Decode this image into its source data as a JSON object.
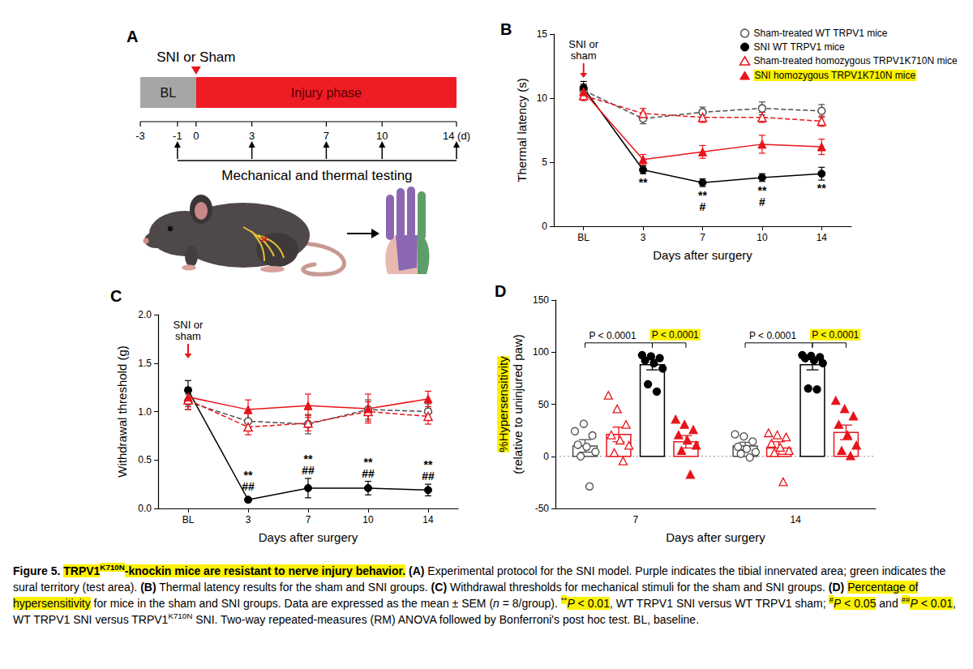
{
  "panel_a": {
    "panel": "A",
    "event_label": "SNI or Sham",
    "event_day": 0,
    "phases": [
      {
        "label": "BL",
        "from": -3,
        "to": 0,
        "color": "#a6a6a6"
      },
      {
        "label": "Injury phase",
        "from": 0,
        "to": 14,
        "color": "#ee1c25"
      }
    ],
    "ticks": [
      -3,
      -1,
      0,
      3,
      7,
      10,
      {
        "value": 14,
        "label": "14 (d)"
      }
    ],
    "testing_days": [
      -1,
      3,
      7,
      10,
      14
    ],
    "testing_label": "Mechanical and thermal testing"
  },
  "chart_data": [
    {
      "panel": "B",
      "type": "line",
      "x_label": "Days after surgery",
      "y_label": "Thermal latency (s)",
      "categories": [
        "BL",
        "3",
        "7",
        "10",
        "14"
      ],
      "ylim": [
        0,
        15
      ],
      "yticks": [
        0,
        5,
        10,
        15
      ],
      "grid": false,
      "legend": "upper right",
      "event": {
        "text": "SNI or sham",
        "x": "BL"
      },
      "series": [
        {
          "name": "Sham-treated WT TRPV1 mice",
          "color": "#4d4d4d",
          "marker": "open_circle",
          "line_style": "dashed",
          "values": [
            10.6,
            8.4,
            8.9,
            9.2,
            9.0
          ],
          "errors": [
            0.5,
            0.4,
            0.4,
            0.5,
            0.5
          ]
        },
        {
          "name": "SNI WT TRPV1 mice",
          "color": "#000000",
          "marker": "circle",
          "line_style": "solid",
          "values": [
            10.8,
            4.4,
            3.4,
            3.8,
            4.1
          ],
          "errors": [
            0.5,
            0.3,
            0.3,
            0.3,
            0.5
          ],
          "significance": [
            null,
            [
              "**"
            ],
            [
              "**",
              "#"
            ],
            [
              "**",
              "#"
            ],
            [
              "**"
            ]
          ]
        },
        {
          "name": "Sham-treated homozygous TRPV1K710N mice",
          "color": "#e8141b",
          "marker": "open_triangle",
          "line_style": "dashed",
          "values": [
            10.2,
            8.8,
            8.5,
            8.5,
            8.2
          ],
          "errors": [
            0.4,
            0.4,
            0.4,
            0.4,
            0.4
          ]
        },
        {
          "name": "SNI homozygous TRPV1K710N mice",
          "color": "#e8141b",
          "marker": "triangle",
          "line_style": "solid",
          "values": [
            10.5,
            5.2,
            5.8,
            6.4,
            6.2
          ],
          "errors": [
            0.5,
            0.4,
            0.5,
            0.7,
            0.6
          ]
        }
      ]
    },
    {
      "panel": "C",
      "type": "line",
      "x_label": "Days after surgery",
      "y_label": "Withdrawal threshold (g)",
      "categories": [
        "BL",
        "3",
        "7",
        "10",
        "14"
      ],
      "ylim": [
        0,
        2
      ],
      "yticks": [
        {
          "value": 0,
          "label": "0.0"
        },
        0.5,
        {
          "value": 1,
          "label": "1.0"
        },
        1.5,
        {
          "value": 2,
          "label": "2.0"
        }
      ],
      "grid": false,
      "event": {
        "text": "SNI or sham",
        "x": "BL"
      },
      "series": [
        {
          "color": "#4d4d4d",
          "marker": "open_circle",
          "line_style": "dashed",
          "values": [
            1.1,
            0.9,
            0.87,
            1.02,
            1.0
          ],
          "errors": [
            0.08,
            0.08,
            0.1,
            0.1,
            0.08
          ]
        },
        {
          "color": "#000000",
          "marker": "circle",
          "line_style": "solid",
          "values": [
            1.22,
            0.09,
            0.21,
            0.21,
            0.19
          ],
          "errors": [
            0.1,
            0.02,
            0.1,
            0.07,
            0.06
          ],
          "significance": [
            null,
            [
              "**",
              "##"
            ],
            [
              "**",
              "##"
            ],
            [
              "**",
              "##"
            ],
            [
              "**",
              "##"
            ]
          ]
        },
        {
          "color": "#e8141b",
          "marker": "open_triangle",
          "line_style": "dashed",
          "values": [
            1.12,
            0.84,
            0.88,
            1.0,
            0.95
          ],
          "errors": [
            0.1,
            0.08,
            0.08,
            0.1,
            0.08
          ]
        },
        {
          "color": "#e8141b",
          "marker": "triangle",
          "line_style": "solid",
          "values": [
            1.15,
            1.02,
            1.06,
            1.03,
            1.13
          ],
          "errors": [
            0.1,
            0.1,
            0.12,
            0.15,
            0.08
          ]
        }
      ]
    },
    {
      "panel": "D",
      "type": "bar",
      "x_label": "Days after surgery",
      "y_label": [
        "%Hypersensitivity",
        "(relative to uninjured paw)"
      ],
      "categories": [
        "7",
        "14"
      ],
      "ylim": [
        -50,
        150
      ],
      "yticks": [
        -50,
        0,
        50,
        100,
        150
      ],
      "grid": false,
      "reference_line": 0,
      "series": [
        {
          "color": "#4d4d4d",
          "marker": "open_circle",
          "values": [
            10,
            10
          ],
          "errors": [
            6,
            3.5
          ],
          "points": [
            [
              25,
              32,
              20,
              12,
              10,
              5,
              0,
              -28
            ],
            [
              22,
              20,
              15,
              10,
              8,
              5,
              3,
              0
            ]
          ]
        },
        {
          "color": "#e8141b",
          "marker": "open_triangle",
          "values": [
            21,
            8
          ],
          "errors": [
            7,
            6
          ],
          "points": [
            [
              58,
              45,
              30,
              20,
              15,
              10,
              3,
              -5
            ],
            [
              22,
              20,
              18,
              12,
              8,
              5,
              3,
              -25
            ]
          ]
        },
        {
          "color": "#000000",
          "marker": "circle",
          "values": [
            88,
            88
          ],
          "errors": [
            5,
            5
          ],
          "points": [
            [
              98,
              97,
              95,
              93,
              90,
              85,
              70,
              63
            ],
            [
              98,
              97,
              96,
              95,
              93,
              90,
              66,
              65
            ]
          ]
        },
        {
          "color": "#e8141b",
          "marker": "triangle",
          "values": [
            14,
            23
          ],
          "errors": [
            6,
            7
          ],
          "points": [
            [
              35,
              30,
              25,
              20,
              15,
              10,
              5,
              -18
            ],
            [
              53,
              45,
              38,
              30,
              20,
              10,
              5,
              0
            ]
          ]
        }
      ],
      "comparisons": [
        {
          "category": "7",
          "from": 0,
          "to": 2,
          "text": "P < 0.0001"
        },
        {
          "category": "7",
          "from": 2,
          "to": 3,
          "text": "P < 0.0001"
        },
        {
          "category": "14",
          "from": 0,
          "to": 2,
          "text": "P < 0.0001"
        },
        {
          "category": "14",
          "from": 2,
          "to": 3,
          "text": "P < 0.0001"
        }
      ]
    }
  ],
  "caption": [
    {
      "text": "Figure 5. ",
      "bold": true
    },
    {
      "text": "TRPV1",
      "bold": true,
      "highlight": true
    },
    {
      "text": "K710N",
      "bold": true,
      "highlight": true,
      "sup": true
    },
    {
      "text": "-knockin mice are resistant to nerve injury behavior.",
      "bold": true,
      "highlight": true
    },
    {
      "text": " (A)",
      "bold": true
    },
    {
      "text": " Experimental protocol for the SNI model. Purple indicates the tibial innervated area; green indicates the sural territory (test area). "
    },
    {
      "text": "(B)",
      "bold": true
    },
    {
      "text": " Thermal latency results for the sham and SNI groups. "
    },
    {
      "text": "(C)",
      "bold": true
    },
    {
      "text": " Withdrawal thresholds for mechanical stimuli for the sham and SNI groups. "
    },
    {
      "text": "(D) ",
      "bold": true
    },
    {
      "text": "Percentage of hypersensitivity",
      "highlight": true
    },
    {
      "text": " for mice in the sham and SNI groups. Data are expressed as the mean ± SEM ("
    },
    {
      "text": "n",
      "italic": true
    },
    {
      "text": " = 8/group). "
    },
    {
      "text": "**",
      "sup": true,
      "highlight": true
    },
    {
      "text": "P",
      "italic": true,
      "highlight": true
    },
    {
      "text": " < 0.01",
      "highlight": true
    },
    {
      "text": ", WT TRPV1 SNI versus WT TRPV1 sham; "
    },
    {
      "text": "#",
      "sup": true,
      "highlight": true
    },
    {
      "text": "P",
      "italic": true,
      "highlight": true
    },
    {
      "text": " < 0.05",
      "highlight": true
    },
    {
      "text": " and "
    },
    {
      "text": "##",
      "sup": true,
      "highlight": true
    },
    {
      "text": "P",
      "italic": true,
      "highlight": true
    },
    {
      "text": " < 0.01",
      "highlight": true
    },
    {
      "text": ", WT TRPV1 SNI versus TRPV1"
    },
    {
      "text": "K710N",
      "sup": true
    },
    {
      "text": " SNI. Two-way repeated-measures (RM) ANOVA followed by Bonferroni's post hoc test. BL, baseline."
    }
  ]
}
